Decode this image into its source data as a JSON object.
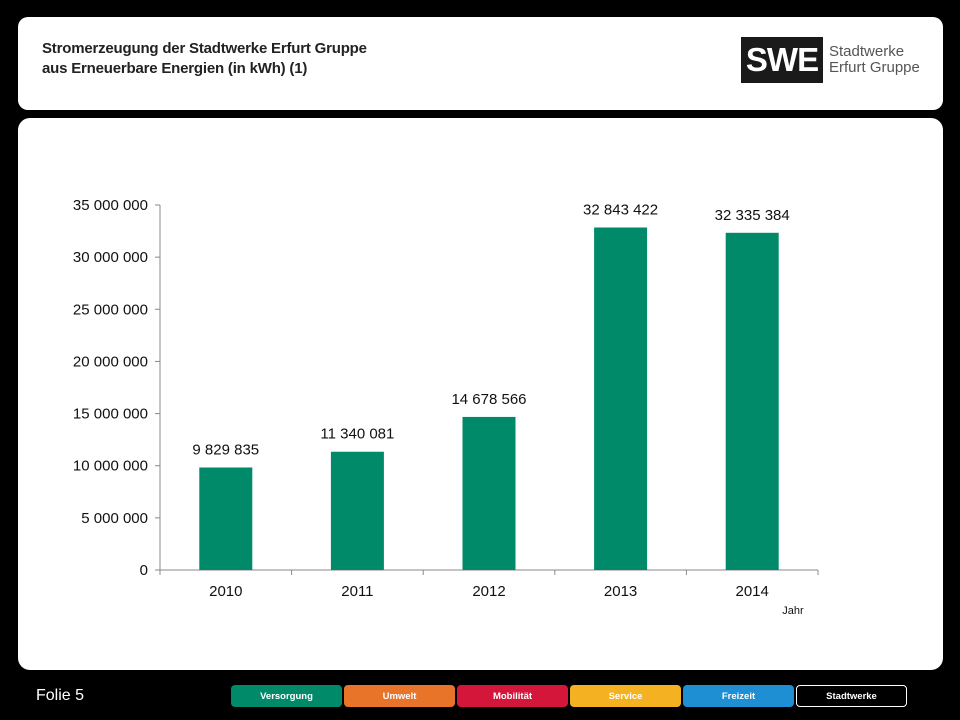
{
  "header": {
    "title_line1": "Stromerzeugung der Stadtwerke Erfurt Gruppe",
    "title_line2": "aus Erneuerbare Energien (in kWh) (1)",
    "logo_abbrev": "SWE",
    "logo_line1": "Stadtwerke",
    "logo_line2": "Erfurt Gruppe"
  },
  "chart_data": {
    "type": "bar",
    "title": "",
    "xlabel": "Jahr",
    "ylabel": "",
    "categories": [
      "2010",
      "2011",
      "2012",
      "2013",
      "2014"
    ],
    "values": [
      9829835,
      11340081,
      14678566,
      32843422,
      32335384
    ],
    "value_labels": [
      "9 829 835",
      "11 340 081",
      "14 678 566",
      "32 843 422",
      "32 335 384"
    ],
    "ylim": [
      0,
      35000000
    ],
    "yticks": [
      0,
      5000000,
      10000000,
      15000000,
      20000000,
      25000000,
      30000000,
      35000000
    ],
    "ytick_labels": [
      "0",
      "5 000 000",
      "10 000 000",
      "15 000 000",
      "20 000 000",
      "25 000 000",
      "30 000 000",
      "35 000 000"
    ],
    "bar_color": "#008a6a",
    "grid": false,
    "legend": "none"
  },
  "footer": {
    "folio": "Folie 5",
    "nav": [
      {
        "label": "Versorgung",
        "color": "#008a6a"
      },
      {
        "label": "Umwelt",
        "color": "#e8742a"
      },
      {
        "label": "Mobilität",
        "color": "#d4163a"
      },
      {
        "label": "Service",
        "color": "#f4b223"
      },
      {
        "label": "Freizeit",
        "color": "#1e8fd2"
      },
      {
        "label": "Stadtwerke",
        "color": "#000000"
      }
    ]
  }
}
